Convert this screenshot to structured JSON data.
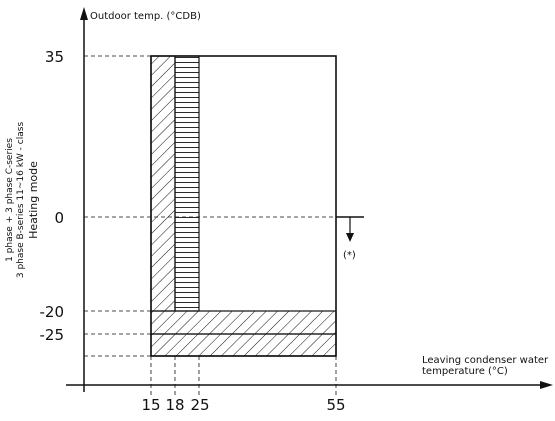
{
  "diagram": {
    "y_axis_label": "Outdoor temp. (°CDB)",
    "x_axis_label_line1": "Leaving condenser water",
    "x_axis_label_line2": "temperature (°C)",
    "y_ticks": [
      "35",
      "0",
      "-20",
      "-25"
    ],
    "x_ticks": [
      "15",
      "18",
      "25",
      "55"
    ],
    "side_label_line1": "1 phase + 3 phase C-series",
    "side_label_line2": "3 phase B-series 11~16 kW - class",
    "side_label_line3": "Heating mode",
    "marker_label": "(*)",
    "colors": {
      "line": "#111111",
      "background": "#ffffff"
    }
  }
}
